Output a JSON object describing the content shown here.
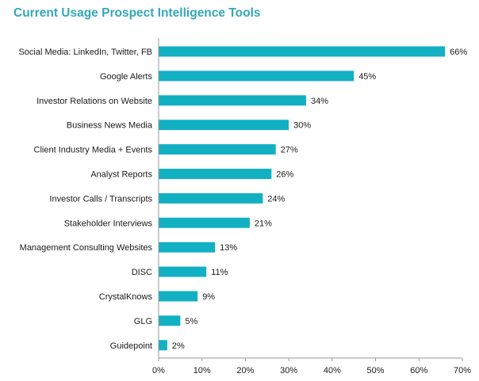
{
  "chart_data": {
    "type": "bar",
    "orientation": "horizontal",
    "title": "Current Usage Prospect Intelligence Tools",
    "categories": [
      "Social Media: LinkedIn, Twitter, FB",
      "Google Alerts",
      "Investor Relations on Website",
      "Business News Media",
      "Client Industry Media + Events",
      "Analyst Reports",
      "Investor Calls / Transcripts",
      "Stakeholder Interviews",
      "Management Consulting Websites",
      "DISC",
      "CrystalKnows",
      "GLG",
      "Guidepoint"
    ],
    "values": [
      66,
      45,
      34,
      30,
      27,
      26,
      24,
      21,
      13,
      11,
      9,
      5,
      2
    ],
    "value_labels": [
      "66%",
      "45%",
      "34%",
      "30%",
      "27%",
      "26%",
      "24%",
      "21%",
      "13%",
      "11%",
      "9%",
      "5%",
      "2%"
    ],
    "xlim": [
      0,
      70
    ],
    "xticks": [
      0,
      10,
      20,
      30,
      40,
      50,
      60,
      70
    ],
    "xtick_labels": [
      "0%",
      "10%",
      "20%",
      "30%",
      "40%",
      "50%",
      "60%",
      "70%"
    ],
    "xlabel": "",
    "ylabel": "",
    "grid": false,
    "legend": "none",
    "colors": {
      "bar": "#12b0c3",
      "title": "#34a7b7",
      "axis": "#999999",
      "text": "#1a1a1a"
    }
  }
}
